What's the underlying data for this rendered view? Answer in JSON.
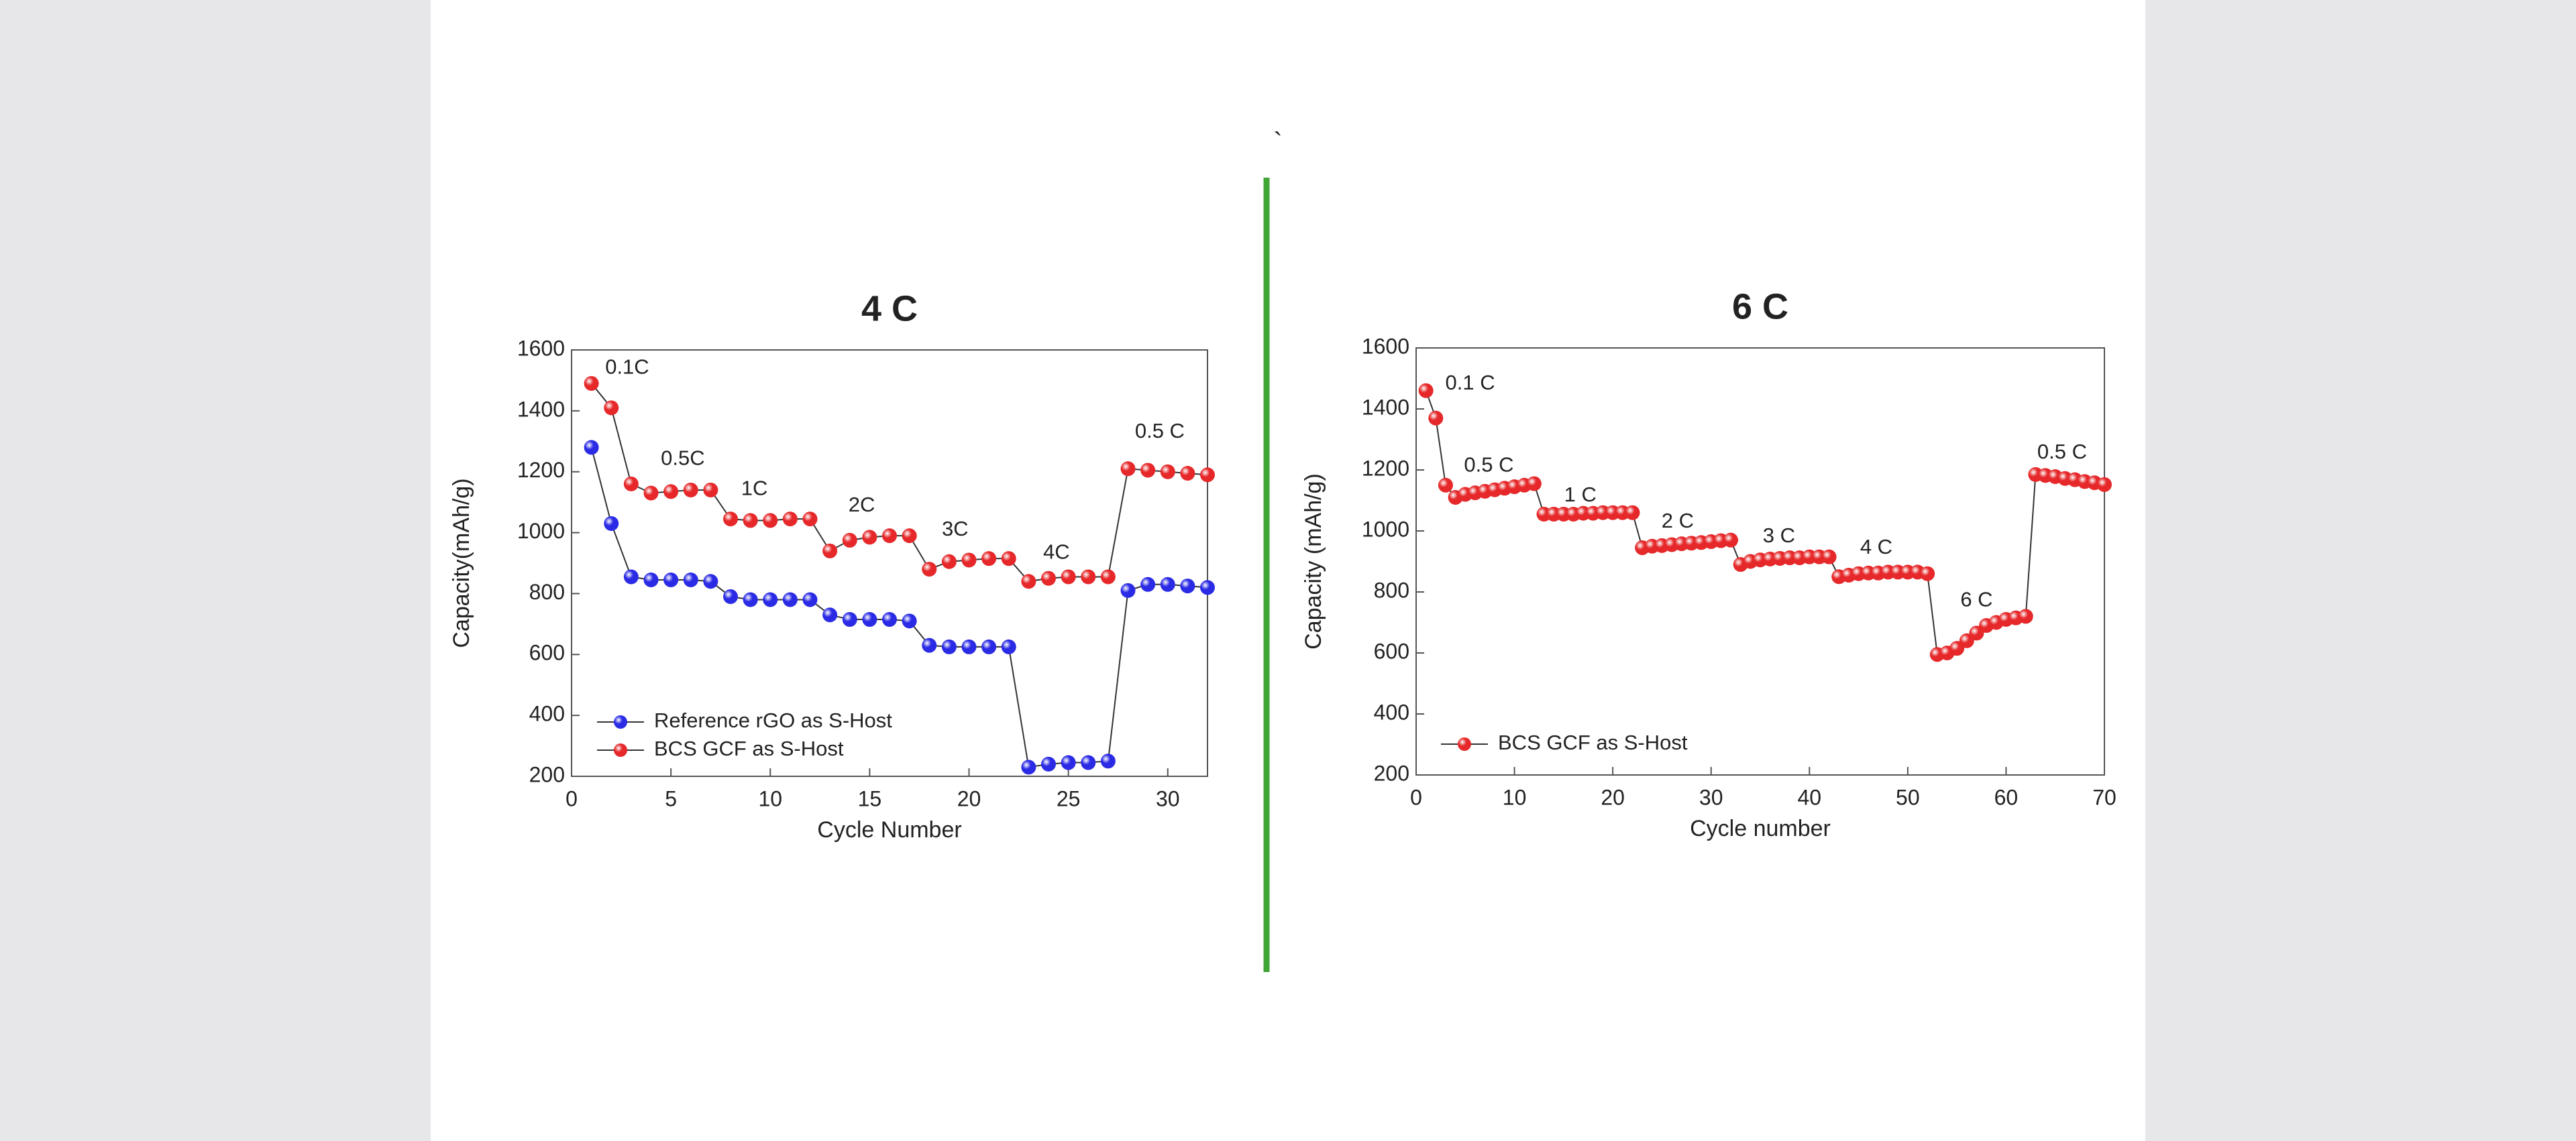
{
  "page_mark": "`",
  "chart_data": [
    {
      "type": "line",
      "title": "4 C",
      "xlabel": "Cycle Number",
      "ylabel": "Capacity(mAh/g)",
      "x": [
        1,
        2,
        3,
        4,
        5,
        6,
        7,
        8,
        9,
        10,
        11,
        12,
        13,
        14,
        15,
        16,
        17,
        18,
        19,
        20,
        21,
        22,
        23,
        24,
        25,
        26,
        27,
        28,
        29,
        30,
        31,
        32
      ],
      "series": [
        {
          "name": "Reference rGO as S-Host",
          "color": "#2b2be6",
          "values": [
            1280,
            1030,
            855,
            845,
            845,
            845,
            840,
            790,
            780,
            780,
            780,
            780,
            730,
            715,
            715,
            715,
            710,
            630,
            625,
            625,
            625,
            625,
            230,
            240,
            245,
            245,
            250,
            810,
            830,
            830,
            825,
            820
          ]
        },
        {
          "name": "BCS GCF as S-Host",
          "color": "#e6282a",
          "values": [
            1490,
            1410,
            1160,
            1130,
            1135,
            1140,
            1140,
            1045,
            1040,
            1040,
            1045,
            1045,
            940,
            975,
            985,
            990,
            990,
            880,
            905,
            910,
            915,
            915,
            840,
            850,
            855,
            855,
            855,
            1210,
            1205,
            1200,
            1195,
            1190
          ]
        }
      ],
      "annotations": [
        "0.1C",
        "0.5C",
        "1C",
        "2C",
        "3C",
        "4C",
        "0.5 C"
      ],
      "xlim": [
        0,
        32
      ],
      "xticks": [
        0,
        5,
        10,
        15,
        20,
        25,
        30
      ],
      "ylim": [
        200,
        1600
      ],
      "yticks": [
        200,
        400,
        600,
        800,
        1000,
        1200,
        1400,
        1600
      ],
      "grid": false,
      "legend": "lower-left"
    },
    {
      "type": "line",
      "title": "6 C",
      "xlabel": "Cycle number",
      "ylabel": "Capacity (mAh/g)",
      "x": [
        1,
        2,
        3,
        4,
        5,
        6,
        7,
        8,
        9,
        10,
        11,
        12,
        13,
        14,
        15,
        16,
        17,
        18,
        19,
        20,
        21,
        22,
        23,
        24,
        25,
        26,
        27,
        28,
        29,
        30,
        31,
        32,
        33,
        34,
        35,
        36,
        37,
        38,
        39,
        40,
        41,
        42,
        43,
        44,
        45,
        46,
        47,
        48,
        49,
        50,
        51,
        52,
        53,
        54,
        55,
        56,
        57,
        58,
        59,
        60,
        61,
        62,
        63,
        64,
        65,
        66,
        67,
        68,
        69,
        70
      ],
      "series": [
        {
          "name": "BCS GCF as S-Host",
          "color": "#e6282a",
          "values": [
            1460,
            1370,
            1150,
            1110,
            1120,
            1125,
            1130,
            1135,
            1140,
            1145,
            1150,
            1155,
            1055,
            1055,
            1055,
            1055,
            1058,
            1058,
            1060,
            1060,
            1060,
            1060,
            945,
            950,
            952,
            955,
            958,
            960,
            962,
            965,
            968,
            970,
            890,
            900,
            905,
            908,
            910,
            912,
            912,
            915,
            915,
            915,
            850,
            855,
            860,
            862,
            862,
            865,
            865,
            865,
            865,
            860,
            595,
            600,
            615,
            640,
            665,
            690,
            700,
            710,
            715,
            720,
            1185,
            1182,
            1178,
            1172,
            1168,
            1162,
            1158,
            1152
          ]
        }
      ],
      "annotations": [
        "0.1 C",
        "0.5 C",
        "1 C",
        "2 C",
        "3 C",
        "4 C",
        "6 C",
        "0.5 C"
      ],
      "xlim": [
        0,
        70
      ],
      "xticks": [
        0,
        10,
        20,
        30,
        40,
        50,
        60,
        70
      ],
      "ylim": [
        200,
        1600
      ],
      "yticks": [
        200,
        400,
        600,
        800,
        1000,
        1200,
        1400,
        1600
      ],
      "grid": false,
      "legend": "lower-left"
    }
  ]
}
